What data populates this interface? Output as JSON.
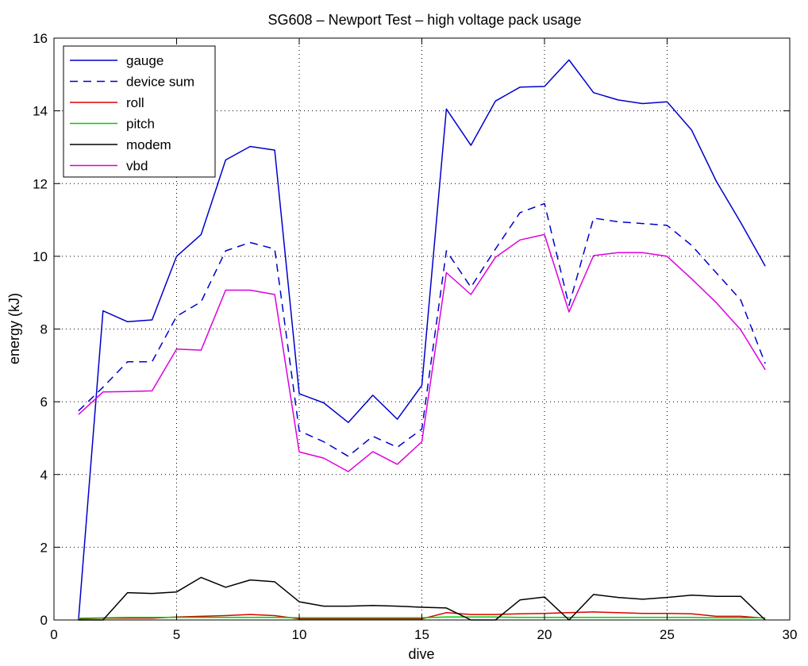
{
  "chart_data": {
    "type": "line",
    "title": "SG608 – Newport Test – high voltage pack usage",
    "xlabel": "dive",
    "ylabel": "energy (kJ)",
    "xlim": [
      0,
      30
    ],
    "ylim": [
      0,
      16
    ],
    "xticks": [
      "0",
      "5",
      "10",
      "15",
      "20",
      "25",
      "30"
    ],
    "yticks": [
      "0",
      "2",
      "4",
      "6",
      "8",
      "10",
      "12",
      "14",
      "16"
    ],
    "grid": true,
    "legend_position": "top-left",
    "x": [
      1,
      2,
      3,
      4,
      5,
      6,
      7,
      8,
      9,
      10,
      11,
      12,
      13,
      14,
      15,
      16,
      17,
      18,
      19,
      20,
      21,
      22,
      23,
      24,
      25,
      26,
      27,
      28,
      29
    ],
    "series": [
      {
        "name": "gauge",
        "color": "#0000cc",
        "dash": "solid",
        "values": [
          0,
          8.5,
          8.2,
          8.25,
          10,
          10.6,
          12.65,
          13.02,
          12.92,
          6.22,
          5.97,
          5.43,
          6.18,
          5.52,
          6.45,
          14.05,
          13.05,
          14.27,
          14.65,
          14.67,
          15.4,
          14.5,
          14.3,
          14.2,
          14.25,
          13.47,
          12.07,
          10.93,
          9.73
        ]
      },
      {
        "name": "device sum",
        "color": "#0000cc",
        "dash": "dashed",
        "values": [
          5.75,
          6.4,
          7.1,
          7.1,
          8.35,
          8.75,
          10.15,
          10.38,
          10.2,
          5.2,
          4.9,
          4.5,
          5.05,
          4.75,
          5.25,
          10.15,
          9.15,
          10.2,
          11.2,
          11.45,
          8.65,
          11.05,
          10.95,
          10.9,
          10.85,
          10.3,
          9.55,
          8.8,
          7.05
        ]
      },
      {
        "name": "roll",
        "color": "#dd0000",
        "dash": "solid",
        "values": [
          0.03,
          0.05,
          0.05,
          0.05,
          0.08,
          0.1,
          0.12,
          0.15,
          0.12,
          0.03,
          0.03,
          0.03,
          0.03,
          0.03,
          0.03,
          0.2,
          0.15,
          0.15,
          0.17,
          0.18,
          0.2,
          0.22,
          0.2,
          0.18,
          0.18,
          0.17,
          0.1,
          0.1,
          0.05
        ]
      },
      {
        "name": "pitch",
        "color": "#00cc00",
        "dash": "solid",
        "values": [
          0.05,
          0.06,
          0.07,
          0.07,
          0.07,
          0.07,
          0.07,
          0.07,
          0.07,
          0.06,
          0.06,
          0.06,
          0.06,
          0.06,
          0.06,
          0.08,
          0.08,
          0.08,
          0.07,
          0.07,
          0.07,
          0.07,
          0.07,
          0.07,
          0.07,
          0.07,
          0.06,
          0.06,
          0.06
        ]
      },
      {
        "name": "modem",
        "color": "#000000",
        "dash": "solid",
        "values": [
          0,
          0,
          0.75,
          0.73,
          0.77,
          1.17,
          0.9,
          1.1,
          1.05,
          0.5,
          0.38,
          0.38,
          0.4,
          0.38,
          0.35,
          0.33,
          0,
          0,
          0.55,
          0.63,
          0,
          0.7,
          0.62,
          0.57,
          0.62,
          0.68,
          0.65,
          0.65,
          0
        ]
      },
      {
        "name": "vbd",
        "color": "#dd00dd",
        "dash": "solid",
        "values": [
          5.65,
          6.27,
          6.28,
          6.3,
          7.45,
          7.42,
          9.07,
          9.07,
          8.95,
          4.62,
          4.45,
          4.08,
          4.63,
          4.28,
          4.9,
          9.55,
          8.95,
          9.97,
          10.45,
          10.6,
          8.47,
          10.02,
          10.1,
          10.1,
          10,
          9.38,
          8.73,
          7.98,
          6.88
        ]
      }
    ]
  }
}
